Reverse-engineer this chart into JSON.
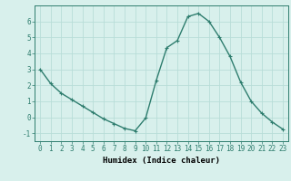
{
  "x": [
    0,
    1,
    2,
    3,
    4,
    5,
    6,
    7,
    8,
    9,
    10,
    11,
    12,
    13,
    14,
    15,
    16,
    17,
    18,
    19,
    20,
    21,
    22,
    23
  ],
  "y": [
    3.0,
    2.1,
    1.5,
    1.1,
    0.7,
    0.3,
    -0.1,
    -0.4,
    -0.7,
    -0.85,
    -0.05,
    2.3,
    4.35,
    4.8,
    6.3,
    6.5,
    6.0,
    5.0,
    3.8,
    2.2,
    1.0,
    0.25,
    -0.3,
    -0.75
  ],
  "line_color": "#2e7d6e",
  "marker": "+",
  "marker_size": 3,
  "linewidth": 1.0,
  "xlabel": "Humidex (Indice chaleur)",
  "xlim": [
    -0.5,
    23.5
  ],
  "ylim": [
    -1.5,
    7.0
  ],
  "yticks": [
    -1,
    0,
    1,
    2,
    3,
    4,
    5,
    6
  ],
  "xticks": [
    0,
    1,
    2,
    3,
    4,
    5,
    6,
    7,
    8,
    9,
    10,
    11,
    12,
    13,
    14,
    15,
    16,
    17,
    18,
    19,
    20,
    21,
    22,
    23
  ],
  "grid_color": "#b8ddd8",
  "bg_color": "#d8f0ec",
  "xlabel_fontsize": 6.5,
  "tick_fontsize": 5.5
}
